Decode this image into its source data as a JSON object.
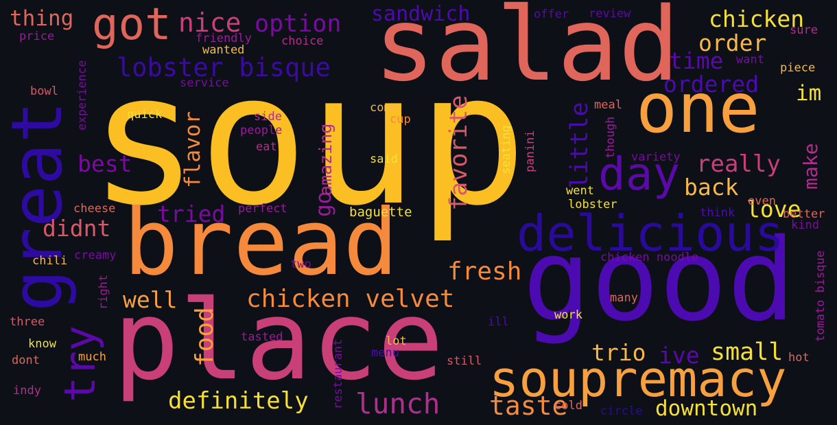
{
  "cloud": {
    "words": [
      {
        "text": "soup",
        "color": "#fbbf24"
      },
      {
        "text": "salad",
        "color": "#e0665c"
      },
      {
        "text": "good",
        "color": "#4c0bb0"
      },
      {
        "text": "place",
        "color": "#c93f78"
      },
      {
        "text": "bread",
        "color": "#f58a3d"
      },
      {
        "text": "great",
        "color": "#2e0ba0"
      },
      {
        "text": "one",
        "color": "#f8a040"
      },
      {
        "text": "delicious",
        "color": "#2a0a9a"
      },
      {
        "text": "soupremacy",
        "color": "#f8a040"
      },
      {
        "text": "got",
        "color": "#e0665c"
      },
      {
        "text": "day",
        "color": "#5a0aa8"
      },
      {
        "text": "try",
        "color": "#5a0aa8"
      },
      {
        "text": "chicken velvet",
        "color": "#f58a3d"
      },
      {
        "text": "lobster bisque",
        "color": "#3a0aa3"
      },
      {
        "text": "definitely",
        "color": "#f5e03a"
      },
      {
        "text": "lunch",
        "color": "#b12e8e"
      },
      {
        "text": "taste",
        "color": "#f58a3d"
      },
      {
        "text": "downtown",
        "color": "#f5e03a"
      },
      {
        "text": "small",
        "color": "#f5e03a"
      },
      {
        "text": "fresh",
        "color": "#f58a3d"
      },
      {
        "text": "love",
        "color": "#f5e03a"
      },
      {
        "text": "really",
        "color": "#c93f78"
      },
      {
        "text": "back",
        "color": "#f8b84a"
      },
      {
        "text": "order",
        "color": "#f8b84a"
      },
      {
        "text": "chicken",
        "color": "#f5e03a"
      },
      {
        "text": "ordered",
        "color": "#4c0bb0"
      },
      {
        "text": "time",
        "color": "#5a0aa8"
      },
      {
        "text": "nice",
        "color": "#c93f78"
      },
      {
        "text": "option",
        "color": "#7b0aa3"
      },
      {
        "text": "sandwich",
        "color": "#4c0bb0"
      },
      {
        "text": "thing",
        "color": "#e0665c"
      },
      {
        "text": "best",
        "color": "#7b0aa3"
      },
      {
        "text": "didnt",
        "color": "#d75a6a"
      },
      {
        "text": "tried",
        "color": "#7b0aa3"
      },
      {
        "text": "well",
        "color": "#f8a040"
      },
      {
        "text": "trio",
        "color": "#f8b84a"
      },
      {
        "text": "ive",
        "color": "#5a0aa8"
      },
      {
        "text": "food",
        "color": "#f8a040"
      },
      {
        "text": "flavor",
        "color": "#f58a3d"
      },
      {
        "text": "go",
        "color": "#9a1a9a"
      },
      {
        "text": "amazing",
        "color": "#b12e8e"
      },
      {
        "text": "favorite",
        "color": "#d75a6a"
      },
      {
        "text": "little",
        "color": "#4c0bb0"
      },
      {
        "text": "make",
        "color": "#b12e8e"
      },
      {
        "text": "im",
        "color": "#f5e03a"
      },
      {
        "text": "baguette",
        "color": "#f5e03a"
      },
      {
        "text": "lobster",
        "color": "#f5e03a"
      },
      {
        "text": "went",
        "color": "#f5e03a"
      },
      {
        "text": "even",
        "color": "#e0665c"
      },
      {
        "text": "better",
        "color": "#e0665c"
      },
      {
        "text": "kind",
        "color": "#7b0aa3"
      },
      {
        "text": "think",
        "color": "#4c0bb0"
      },
      {
        "text": "chicken noodle",
        "color": "#7b0aa3"
      },
      {
        "text": "many",
        "color": "#e0665c"
      },
      {
        "text": "work",
        "color": "#f5e03a"
      },
      {
        "text": "ill",
        "color": "#4c0bb0"
      },
      {
        "text": "hot",
        "color": "#e0665c"
      },
      {
        "text": "circle",
        "color": "#2a0a9a"
      },
      {
        "text": "cold",
        "color": "#e0665c"
      },
      {
        "text": "still",
        "color": "#d75a6a"
      },
      {
        "text": "lot",
        "color": "#f8b84a"
      },
      {
        "text": "menu",
        "color": "#4c0bb0"
      },
      {
        "text": "tasted",
        "color": "#9a1a9a"
      },
      {
        "text": "restaurant",
        "color": "#7b0aa3"
      },
      {
        "text": "much",
        "color": "#f8a040"
      },
      {
        "text": "dont",
        "color": "#e0665c"
      },
      {
        "text": "know",
        "color": "#f5e03a"
      },
      {
        "text": "three",
        "color": "#d75a6a"
      },
      {
        "text": "indy",
        "color": "#b12e8e"
      },
      {
        "text": "right",
        "color": "#9a1a9a"
      },
      {
        "text": "chili",
        "color": "#f8b84a"
      },
      {
        "text": "creamy",
        "color": "#7b0aa3"
      },
      {
        "text": "cheese",
        "color": "#e0665c"
      },
      {
        "text": "two",
        "color": "#7b0aa3"
      },
      {
        "text": "perfect",
        "color": "#9a1a9a"
      },
      {
        "text": "quick",
        "color": "#f5e03a"
      },
      {
        "text": "side",
        "color": "#b12e8e"
      },
      {
        "text": "people",
        "color": "#9a1a9a"
      },
      {
        "text": "eat",
        "color": "#b12e8e"
      },
      {
        "text": "said",
        "color": "#f5e03a"
      },
      {
        "text": "come",
        "color": "#f8b84a"
      },
      {
        "text": "cup",
        "color": "#f58a3d"
      },
      {
        "text": "seating",
        "color": "#f5e03a"
      },
      {
        "text": "panini",
        "color": "#c93f78"
      },
      {
        "text": "meal",
        "color": "#e0665c"
      },
      {
        "text": "though",
        "color": "#9a1a9a"
      },
      {
        "text": "variety",
        "color": "#7b0aa3"
      },
      {
        "text": "tomato bisque",
        "color": "#9a1a9a"
      },
      {
        "text": "experience",
        "color": "#7b0aa3"
      },
      {
        "text": "bowl",
        "color": "#d75a6a"
      },
      {
        "text": "service",
        "color": "#7b0aa3"
      },
      {
        "text": "price",
        "color": "#9a1a9a"
      },
      {
        "text": "friendly",
        "color": "#9a1a9a"
      },
      {
        "text": "choice",
        "color": "#b12e8e"
      },
      {
        "text": "wanted",
        "color": "#f8b84a"
      },
      {
        "text": "offer",
        "color": "#5a0aa8"
      },
      {
        "text": "review",
        "color": "#5a0aa8"
      },
      {
        "text": "sure",
        "color": "#b12e8e"
      },
      {
        "text": "want",
        "color": "#7b0aa3"
      },
      {
        "text": "piece",
        "color": "#f8b84a"
      }
    ]
  }
}
